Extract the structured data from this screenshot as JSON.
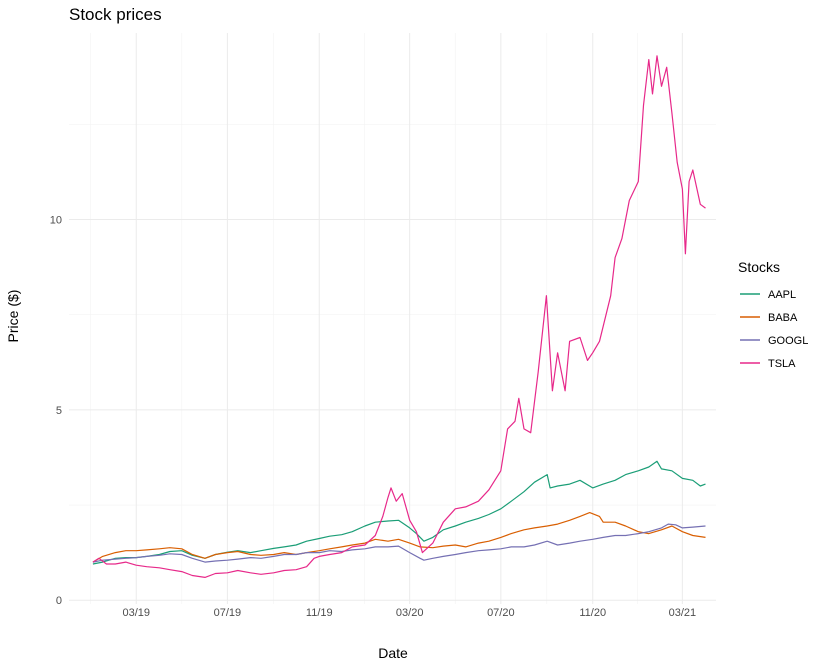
{
  "chart_data": {
    "type": "line",
    "title": "Stock prices",
    "xlabel": "Date",
    "ylabel": "Price ($)",
    "grid": true,
    "legend": {
      "title": "Stocks",
      "placement": "right"
    },
    "xlim": [
      "2018-12-01",
      "2021-04-15"
    ],
    "ylim": [
      -0.1,
      14.9
    ],
    "x_ticks": [
      {
        "date": "2019-03-01",
        "label": "03/19"
      },
      {
        "date": "2019-07-01",
        "label": "07/19"
      },
      {
        "date": "2019-11-01",
        "label": "11/19"
      },
      {
        "date": "2020-03-01",
        "label": "03/20"
      },
      {
        "date": "2020-07-01",
        "label": "07/20"
      },
      {
        "date": "2020-11-01",
        "label": "11/20"
      },
      {
        "date": "2021-03-01",
        "label": "03/21"
      }
    ],
    "y_ticks": [
      0,
      5,
      10
    ],
    "series": [
      {
        "name": "AAPL",
        "color": "#1b9e77",
        "points": [
          [
            "2019-01-02",
            0.95
          ],
          [
            "2019-01-15",
            1.0
          ],
          [
            "2019-02-01",
            1.1
          ],
          [
            "2019-02-15",
            1.12
          ],
          [
            "2019-03-01",
            1.12
          ],
          [
            "2019-03-15",
            1.15
          ],
          [
            "2019-04-01",
            1.2
          ],
          [
            "2019-04-15",
            1.28
          ],
          [
            "2019-05-01",
            1.3
          ],
          [
            "2019-05-15",
            1.18
          ],
          [
            "2019-06-01",
            1.1
          ],
          [
            "2019-06-15",
            1.2
          ],
          [
            "2019-07-01",
            1.26
          ],
          [
            "2019-07-15",
            1.3
          ],
          [
            "2019-08-01",
            1.25
          ],
          [
            "2019-08-15",
            1.3
          ],
          [
            "2019-09-01",
            1.36
          ],
          [
            "2019-09-15",
            1.4
          ],
          [
            "2019-10-01",
            1.45
          ],
          [
            "2019-10-15",
            1.55
          ],
          [
            "2019-11-01",
            1.62
          ],
          [
            "2019-11-15",
            1.68
          ],
          [
            "2019-12-01",
            1.72
          ],
          [
            "2019-12-15",
            1.8
          ],
          [
            "2020-01-01",
            1.95
          ],
          [
            "2020-01-15",
            2.05
          ],
          [
            "2020-02-01",
            2.08
          ],
          [
            "2020-02-15",
            2.1
          ],
          [
            "2020-03-01",
            1.9
          ],
          [
            "2020-03-10",
            1.75
          ],
          [
            "2020-03-20",
            1.55
          ],
          [
            "2020-04-01",
            1.65
          ],
          [
            "2020-04-15",
            1.85
          ],
          [
            "2020-05-01",
            1.95
          ],
          [
            "2020-05-15",
            2.05
          ],
          [
            "2020-06-01",
            2.15
          ],
          [
            "2020-06-15",
            2.25
          ],
          [
            "2020-07-01",
            2.4
          ],
          [
            "2020-07-15",
            2.6
          ],
          [
            "2020-08-01",
            2.85
          ],
          [
            "2020-08-15",
            3.1
          ],
          [
            "2020-09-01",
            3.3
          ],
          [
            "2020-09-05",
            2.95
          ],
          [
            "2020-09-15",
            3.0
          ],
          [
            "2020-10-01",
            3.05
          ],
          [
            "2020-10-15",
            3.15
          ],
          [
            "2020-11-01",
            2.95
          ],
          [
            "2020-11-15",
            3.05
          ],
          [
            "2020-12-01",
            3.15
          ],
          [
            "2020-12-15",
            3.3
          ],
          [
            "2021-01-01",
            3.4
          ],
          [
            "2021-01-15",
            3.5
          ],
          [
            "2021-01-26",
            3.65
          ],
          [
            "2021-02-01",
            3.45
          ],
          [
            "2021-02-15",
            3.4
          ],
          [
            "2021-03-01",
            3.2
          ],
          [
            "2021-03-15",
            3.15
          ],
          [
            "2021-03-25",
            3.0
          ],
          [
            "2021-04-01",
            3.05
          ]
        ]
      },
      {
        "name": "BABA",
        "color": "#d95f02",
        "points": [
          [
            "2019-01-02",
            1.0
          ],
          [
            "2019-01-15",
            1.15
          ],
          [
            "2019-02-01",
            1.25
          ],
          [
            "2019-02-15",
            1.3
          ],
          [
            "2019-03-01",
            1.3
          ],
          [
            "2019-03-15",
            1.32
          ],
          [
            "2019-04-01",
            1.35
          ],
          [
            "2019-04-15",
            1.38
          ],
          [
            "2019-05-01",
            1.35
          ],
          [
            "2019-05-15",
            1.2
          ],
          [
            "2019-06-01",
            1.1
          ],
          [
            "2019-06-15",
            1.2
          ],
          [
            "2019-07-01",
            1.25
          ],
          [
            "2019-07-15",
            1.28
          ],
          [
            "2019-08-01",
            1.2
          ],
          [
            "2019-08-15",
            1.18
          ],
          [
            "2019-09-01",
            1.2
          ],
          [
            "2019-09-15",
            1.25
          ],
          [
            "2019-10-01",
            1.2
          ],
          [
            "2019-10-15",
            1.25
          ],
          [
            "2019-11-01",
            1.3
          ],
          [
            "2019-11-15",
            1.35
          ],
          [
            "2019-12-01",
            1.4
          ],
          [
            "2019-12-15",
            1.45
          ],
          [
            "2020-01-01",
            1.5
          ],
          [
            "2020-01-15",
            1.6
          ],
          [
            "2020-02-01",
            1.55
          ],
          [
            "2020-02-15",
            1.6
          ],
          [
            "2020-03-01",
            1.5
          ],
          [
            "2020-03-15",
            1.4
          ],
          [
            "2020-04-01",
            1.38
          ],
          [
            "2020-04-15",
            1.42
          ],
          [
            "2020-05-01",
            1.45
          ],
          [
            "2020-05-15",
            1.4
          ],
          [
            "2020-06-01",
            1.5
          ],
          [
            "2020-06-15",
            1.55
          ],
          [
            "2020-07-01",
            1.65
          ],
          [
            "2020-07-15",
            1.75
          ],
          [
            "2020-08-01",
            1.85
          ],
          [
            "2020-08-15",
            1.9
          ],
          [
            "2020-09-01",
            1.95
          ],
          [
            "2020-09-15",
            2.0
          ],
          [
            "2020-10-01",
            2.1
          ],
          [
            "2020-10-15",
            2.2
          ],
          [
            "2020-10-28",
            2.3
          ],
          [
            "2020-11-10",
            2.2
          ],
          [
            "2020-11-15",
            2.05
          ],
          [
            "2020-12-01",
            2.05
          ],
          [
            "2020-12-15",
            1.95
          ],
          [
            "2021-01-01",
            1.8
          ],
          [
            "2021-01-15",
            1.75
          ],
          [
            "2021-02-01",
            1.85
          ],
          [
            "2021-02-15",
            1.95
          ],
          [
            "2021-03-01",
            1.8
          ],
          [
            "2021-03-15",
            1.7
          ],
          [
            "2021-04-01",
            1.65
          ]
        ]
      },
      {
        "name": "GOOGL",
        "color": "#7570b3",
        "points": [
          [
            "2019-01-02",
            1.0
          ],
          [
            "2019-01-15",
            1.05
          ],
          [
            "2019-02-01",
            1.08
          ],
          [
            "2019-02-15",
            1.1
          ],
          [
            "2019-03-01",
            1.12
          ],
          [
            "2019-03-15",
            1.15
          ],
          [
            "2019-04-01",
            1.18
          ],
          [
            "2019-04-15",
            1.22
          ],
          [
            "2019-05-01",
            1.2
          ],
          [
            "2019-05-15",
            1.1
          ],
          [
            "2019-06-01",
            1.0
          ],
          [
            "2019-06-15",
            1.03
          ],
          [
            "2019-07-01",
            1.05
          ],
          [
            "2019-07-15",
            1.08
          ],
          [
            "2019-08-01",
            1.12
          ],
          [
            "2019-08-15",
            1.1
          ],
          [
            "2019-09-01",
            1.15
          ],
          [
            "2019-09-15",
            1.2
          ],
          [
            "2019-10-01",
            1.2
          ],
          [
            "2019-10-15",
            1.25
          ],
          [
            "2019-11-01",
            1.25
          ],
          [
            "2019-11-15",
            1.3
          ],
          [
            "2019-12-01",
            1.28
          ],
          [
            "2019-12-15",
            1.32
          ],
          [
            "2020-01-01",
            1.35
          ],
          [
            "2020-01-15",
            1.4
          ],
          [
            "2020-02-01",
            1.4
          ],
          [
            "2020-02-15",
            1.42
          ],
          [
            "2020-03-01",
            1.25
          ],
          [
            "2020-03-15",
            1.1
          ],
          [
            "2020-03-20",
            1.05
          ],
          [
            "2020-04-01",
            1.1
          ],
          [
            "2020-04-15",
            1.15
          ],
          [
            "2020-05-01",
            1.2
          ],
          [
            "2020-05-15",
            1.25
          ],
          [
            "2020-06-01",
            1.3
          ],
          [
            "2020-06-15",
            1.32
          ],
          [
            "2020-07-01",
            1.35
          ],
          [
            "2020-07-15",
            1.4
          ],
          [
            "2020-08-01",
            1.4
          ],
          [
            "2020-08-15",
            1.45
          ],
          [
            "2020-09-01",
            1.55
          ],
          [
            "2020-09-15",
            1.45
          ],
          [
            "2020-10-01",
            1.5
          ],
          [
            "2020-10-15",
            1.55
          ],
          [
            "2020-11-01",
            1.6
          ],
          [
            "2020-11-15",
            1.65
          ],
          [
            "2020-12-01",
            1.7
          ],
          [
            "2020-12-15",
            1.7
          ],
          [
            "2021-01-01",
            1.75
          ],
          [
            "2021-01-15",
            1.8
          ],
          [
            "2021-02-01",
            1.9
          ],
          [
            "2021-02-10",
            2.0
          ],
          [
            "2021-02-20",
            1.98
          ],
          [
            "2021-03-01",
            1.9
          ],
          [
            "2021-03-15",
            1.92
          ],
          [
            "2021-04-01",
            1.95
          ]
        ]
      },
      {
        "name": "TSLA",
        "color": "#e7298a",
        "points": [
          [
            "2019-01-02",
            1.0
          ],
          [
            "2019-01-10",
            1.1
          ],
          [
            "2019-01-20",
            0.95
          ],
          [
            "2019-02-01",
            0.95
          ],
          [
            "2019-02-15",
            1.0
          ],
          [
            "2019-03-01",
            0.92
          ],
          [
            "2019-03-15",
            0.88
          ],
          [
            "2019-04-01",
            0.85
          ],
          [
            "2019-04-15",
            0.8
          ],
          [
            "2019-05-01",
            0.75
          ],
          [
            "2019-05-15",
            0.65
          ],
          [
            "2019-06-01",
            0.6
          ],
          [
            "2019-06-15",
            0.7
          ],
          [
            "2019-07-01",
            0.72
          ],
          [
            "2019-07-15",
            0.78
          ],
          [
            "2019-08-01",
            0.72
          ],
          [
            "2019-08-15",
            0.68
          ],
          [
            "2019-09-01",
            0.72
          ],
          [
            "2019-09-15",
            0.78
          ],
          [
            "2019-10-01",
            0.8
          ],
          [
            "2019-10-15",
            0.88
          ],
          [
            "2019-10-25",
            1.1
          ],
          [
            "2019-11-01",
            1.15
          ],
          [
            "2019-11-15",
            1.2
          ],
          [
            "2019-12-01",
            1.25
          ],
          [
            "2019-12-15",
            1.4
          ],
          [
            "2020-01-01",
            1.45
          ],
          [
            "2020-01-15",
            1.7
          ],
          [
            "2020-01-25",
            2.2
          ],
          [
            "2020-02-01",
            2.7
          ],
          [
            "2020-02-05",
            2.95
          ],
          [
            "2020-02-12",
            2.6
          ],
          [
            "2020-02-20",
            2.8
          ],
          [
            "2020-03-01",
            2.1
          ],
          [
            "2020-03-10",
            1.8
          ],
          [
            "2020-03-18",
            1.25
          ],
          [
            "2020-04-01",
            1.5
          ],
          [
            "2020-04-15",
            2.05
          ],
          [
            "2020-05-01",
            2.4
          ],
          [
            "2020-05-15",
            2.45
          ],
          [
            "2020-06-01",
            2.6
          ],
          [
            "2020-06-15",
            2.9
          ],
          [
            "2020-07-01",
            3.4
          ],
          [
            "2020-07-10",
            4.5
          ],
          [
            "2020-07-20",
            4.7
          ],
          [
            "2020-07-25",
            5.3
          ],
          [
            "2020-08-01",
            4.5
          ],
          [
            "2020-08-10",
            4.4
          ],
          [
            "2020-08-20",
            6.0
          ],
          [
            "2020-08-31",
            8.0
          ],
          [
            "2020-09-08",
            5.5
          ],
          [
            "2020-09-15",
            6.5
          ],
          [
            "2020-09-25",
            5.5
          ],
          [
            "2020-10-01",
            6.8
          ],
          [
            "2020-10-15",
            6.9
          ],
          [
            "2020-10-25",
            6.3
          ],
          [
            "2020-11-01",
            6.5
          ],
          [
            "2020-11-10",
            6.8
          ],
          [
            "2020-11-25",
            8.0
          ],
          [
            "2020-12-01",
            9.0
          ],
          [
            "2020-12-10",
            9.5
          ],
          [
            "2020-12-20",
            10.5
          ],
          [
            "2021-01-01",
            11.0
          ],
          [
            "2021-01-08",
            13.0
          ],
          [
            "2021-01-15",
            14.2
          ],
          [
            "2021-01-20",
            13.3
          ],
          [
            "2021-01-26",
            14.3
          ],
          [
            "2021-02-01",
            13.5
          ],
          [
            "2021-02-08",
            14.0
          ],
          [
            "2021-02-15",
            12.8
          ],
          [
            "2021-02-22",
            11.5
          ],
          [
            "2021-03-01",
            10.8
          ],
          [
            "2021-03-05",
            9.1
          ],
          [
            "2021-03-10",
            11.0
          ],
          [
            "2021-03-15",
            11.3
          ],
          [
            "2021-03-25",
            10.4
          ],
          [
            "2021-04-01",
            10.3
          ]
        ]
      }
    ]
  }
}
